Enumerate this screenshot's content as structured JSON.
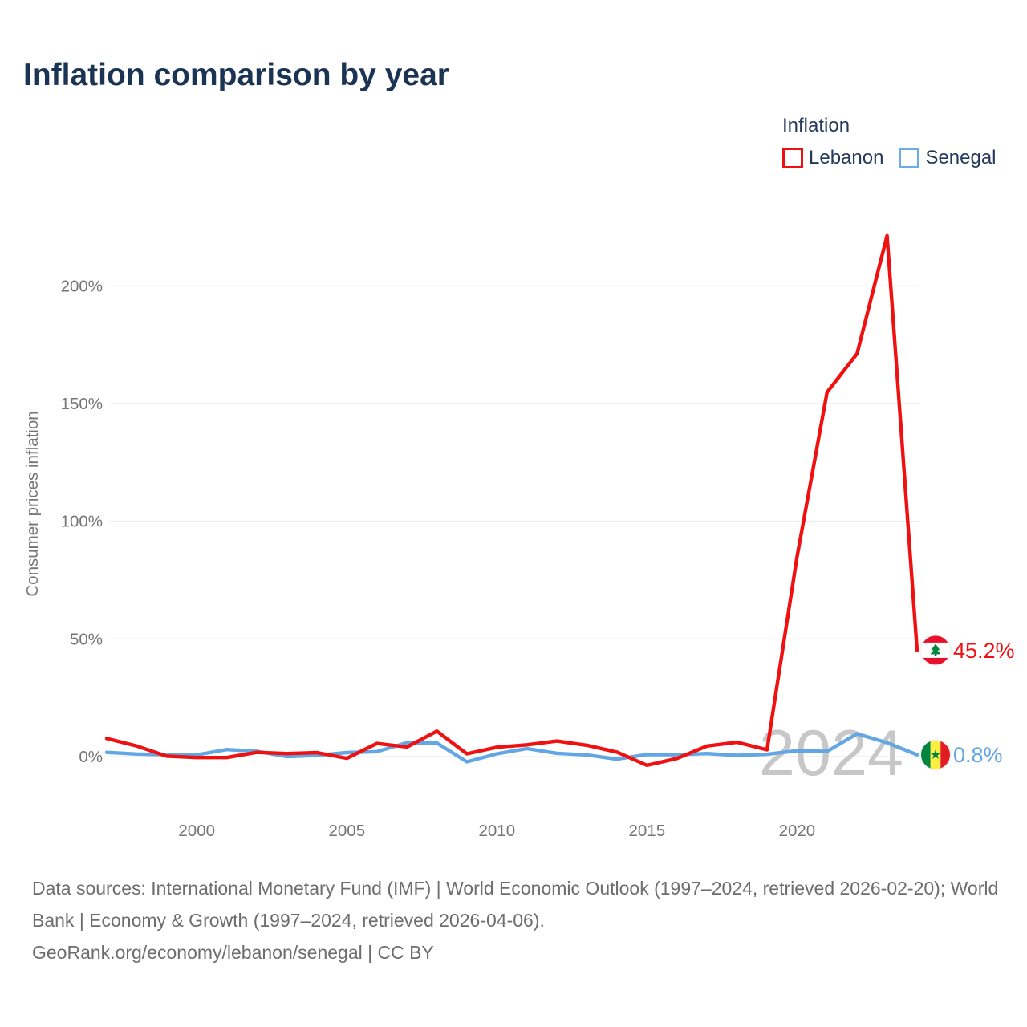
{
  "header": {
    "title": "Inflation comparison by year",
    "title_color": "#1c3454"
  },
  "legend": {
    "title": "Inflation",
    "text_color": "#22395b",
    "items": [
      {
        "label": "Lebanon",
        "color": "#f01010"
      },
      {
        "label": "Senegal",
        "color": "#6aabe8"
      }
    ]
  },
  "chart_data": {
    "type": "line",
    "title": "Inflation comparison by year",
    "xlabel": "",
    "ylabel": "Consumer prices inflation",
    "x": [
      1997,
      1998,
      1999,
      2000,
      2001,
      2002,
      2003,
      2004,
      2005,
      2006,
      2007,
      2008,
      2009,
      2010,
      2011,
      2012,
      2013,
      2014,
      2015,
      2016,
      2017,
      2018,
      2019,
      2020,
      2021,
      2022,
      2023,
      2024
    ],
    "series": [
      {
        "name": "Lebanon",
        "color": "#f01010",
        "values": [
          7.7,
          4.5,
          0.2,
          -0.4,
          -0.4,
          1.8,
          1.3,
          1.7,
          -0.7,
          5.6,
          4.1,
          10.8,
          1.2,
          4.0,
          5.0,
          6.6,
          4.8,
          1.9,
          -3.7,
          -0.8,
          4.5,
          6.1,
          2.9,
          84.9,
          154.8,
          171.2,
          221.3,
          45.2
        ]
      },
      {
        "name": "Senegal",
        "color": "#63a6e4",
        "values": [
          1.8,
          1.1,
          0.8,
          0.7,
          3.0,
          2.3,
          0.0,
          0.5,
          1.7,
          2.1,
          5.9,
          5.8,
          -2.2,
          1.2,
          3.4,
          1.4,
          0.7,
          -1.1,
          0.9,
          0.8,
          1.3,
          0.5,
          1.0,
          2.5,
          2.2,
          9.7,
          5.9,
          0.8
        ]
      }
    ],
    "x_axis": {
      "ticks": [
        2000,
        2005,
        2010,
        2015,
        2020
      ]
    },
    "y_axis": {
      "ticks": [
        0,
        50,
        100,
        150,
        200
      ],
      "tick_suffix": "%"
    },
    "ylim": [
      -12,
      225
    ],
    "grid": true,
    "legend_position": "top-right",
    "tick_color": "#757575",
    "grid_color": "#ececec",
    "watermark": "2024",
    "watermark_color": "#c7c7c7",
    "end_labels": [
      {
        "series": "Lebanon",
        "text": "45.2%",
        "icon": "lebanon-flag-icon"
      },
      {
        "series": "Senegal",
        "text": "0.8%",
        "icon": "senegal-flag-icon"
      }
    ]
  },
  "footer": {
    "sources": "Data sources: International Monetary Fund (IMF) | World Economic Outlook (1997–2024, retrieved 2026-02-20); World Bank | Economy & Growth (1997–2024, retrieved 2026-04-06).",
    "attribution": "GeoRank.org/economy/lebanon/senegal | CC BY"
  }
}
